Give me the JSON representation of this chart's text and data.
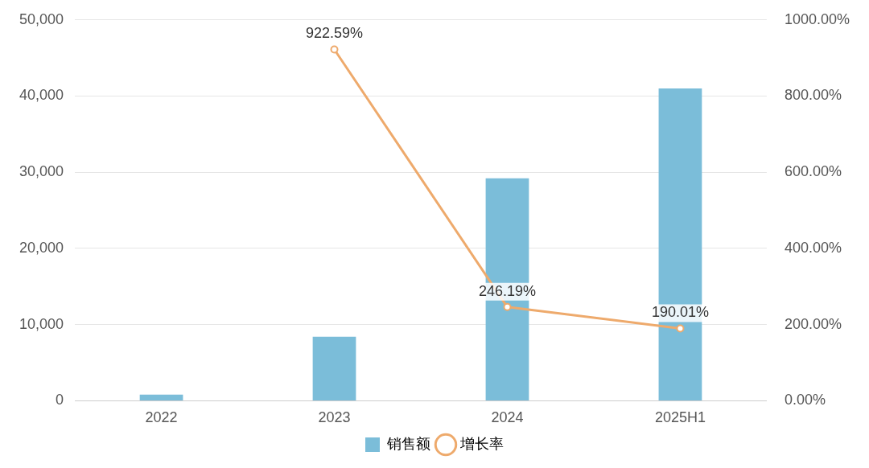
{
  "chart_data": {
    "type": "bar",
    "categories": [
      "2022",
      "2023",
      "2024",
      "2025H1"
    ],
    "series": [
      {
        "name": "销售额",
        "color": "#7bbdd9",
        "values": [
          800,
          8400,
          29200,
          41000
        ]
      },
      {
        "name": "增长率",
        "type": "line",
        "axis": "y2",
        "color": "#eeaa6c",
        "marker": "circle",
        "values": [
          null,
          922.59,
          246.19,
          190.01
        ],
        "value_labels": [
          null,
          "922.59%",
          "246.19%",
          "190.01%"
        ]
      }
    ],
    "ylim": [
      0,
      50000
    ],
    "yticks": [
      {
        "value": 0,
        "label": "0"
      },
      {
        "value": 10000,
        "label": "10,000"
      },
      {
        "value": 20000,
        "label": "20,000"
      },
      {
        "value": 30000,
        "label": "30,000"
      },
      {
        "value": 40000,
        "label": "40,000"
      },
      {
        "value": 50000,
        "label": "50,000"
      }
    ],
    "y2lim": [
      0,
      1000
    ],
    "y2ticks": [
      {
        "value": 0,
        "label": "0.00%"
      },
      {
        "value": 200,
        "label": "200.00%"
      },
      {
        "value": 400,
        "label": "400.00%"
      },
      {
        "value": 600,
        "label": "600.00%"
      },
      {
        "value": 800,
        "label": "800.00%"
      },
      {
        "value": 1000,
        "label": "1000.00%"
      }
    ],
    "grid": "y",
    "legend": "bottom"
  }
}
